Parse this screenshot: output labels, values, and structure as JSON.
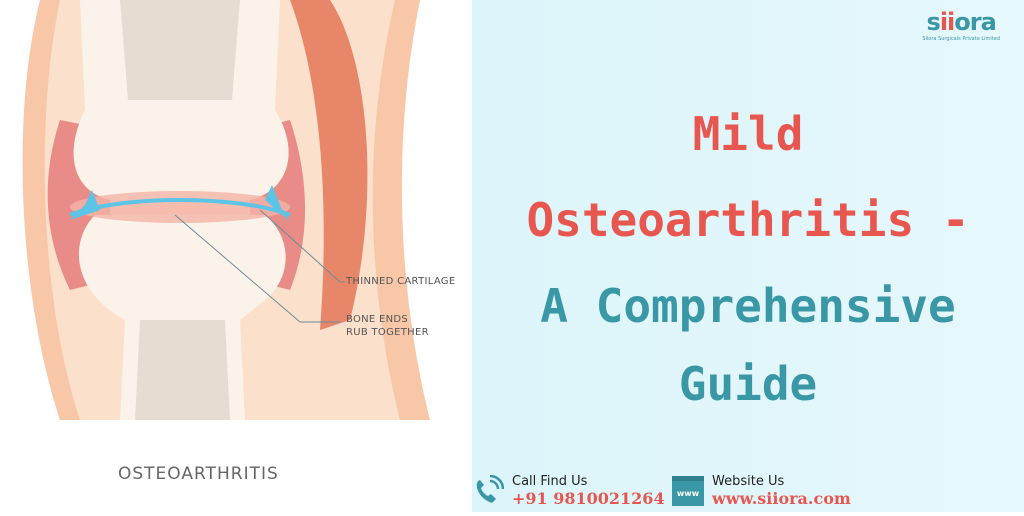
{
  "illustration": {
    "label_cartilage": "THINNED CARTILAGE",
    "label_bone_1": "BONE ENDS",
    "label_bone_2": "RUB TOGETHER",
    "caption": "OSTEOARTHRITIS"
  },
  "title": {
    "line1": "Mild",
    "line2": "Osteoarthritis -",
    "line3": "A Comprehensive",
    "line4": "Guide"
  },
  "logo": {
    "name": "siiora",
    "tagline": "Siiora Surgicals Private Limited"
  },
  "contact": {
    "phone_label": "Call Find Us",
    "phone": "+91 9810021264",
    "web_label": "Website Us",
    "web": "www.siiora.com",
    "web_icon_text": "www"
  },
  "colors": {
    "red": "#e8574f",
    "teal": "#3a97a6",
    "background": "#dcf5fa"
  }
}
